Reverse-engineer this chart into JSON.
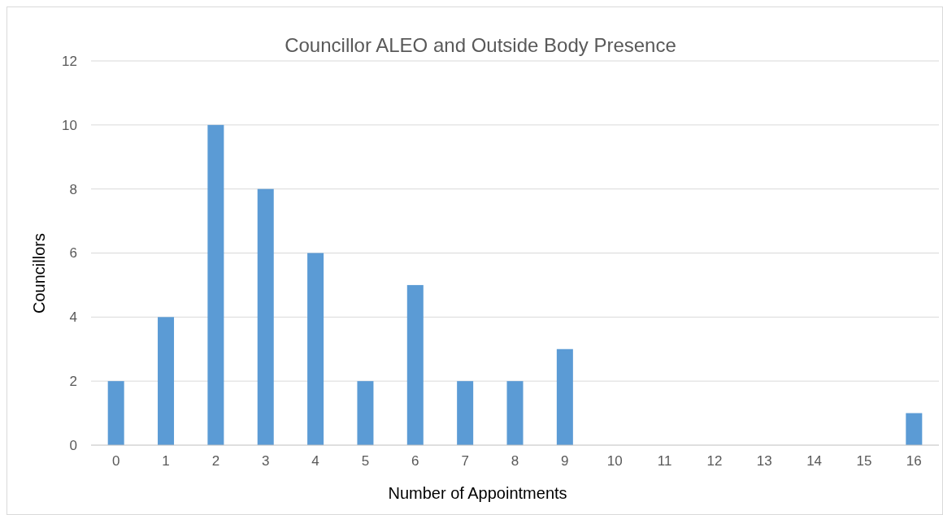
{
  "chart_data": {
    "type": "bar",
    "title": "Councillor ALEO and Outside Body Presence",
    "xlabel": "Number of Appointments",
    "ylabel": "Councillors",
    "categories": [
      "0",
      "1",
      "2",
      "3",
      "4",
      "5",
      "6",
      "7",
      "8",
      "9",
      "10",
      "11",
      "12",
      "13",
      "14",
      "15",
      "16"
    ],
    "values": [
      2,
      4,
      10,
      8,
      6,
      2,
      5,
      2,
      2,
      3,
      0,
      0,
      0,
      0,
      0,
      0,
      1
    ],
    "color": "#5b9bd5",
    "ylim": [
      0,
      12
    ],
    "yticks": [
      0,
      2,
      4,
      6,
      8,
      10,
      12
    ],
    "grid": "y"
  }
}
